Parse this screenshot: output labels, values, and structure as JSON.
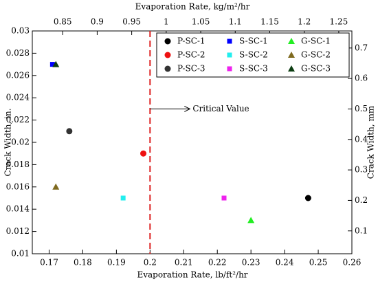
{
  "chart_data": {
    "type": "scatter",
    "xlabel": "Evaporation Rate, lb/ft²/hr",
    "x2label": "Evaporation Rate, kg/m²/hr",
    "ylabel": "Crack Width, in.",
    "y2label": "Crack Width, mm",
    "xlim": [
      0.165,
      0.26
    ],
    "xticks": [
      0.17,
      0.18,
      0.19,
      0.2,
      0.21,
      0.22,
      0.23,
      0.24,
      0.25,
      0.26
    ],
    "x2lim": [
      0.806,
      1.269
    ],
    "x2ticks": [
      0.85,
      0.9,
      0.95,
      1,
      1.05,
      1.1,
      1.15,
      1.2,
      1.25
    ],
    "ylim": [
      0.01,
      0.03
    ],
    "yticks": [
      0.01,
      0.012,
      0.014,
      0.016,
      0.018,
      0.02,
      0.022,
      0.024,
      0.026,
      0.028,
      0.03
    ],
    "y2lim": [
      0.025,
      0.756
    ],
    "y2ticks": [
      0.1,
      0.2,
      0.3,
      0.4,
      0.5,
      0.6,
      0.7
    ],
    "annotation": {
      "text": "Critical Value",
      "x": 0.2,
      "y": 0.023
    },
    "legend": "upper right",
    "series": [
      {
        "name": "P-SC-1",
        "color": "#000000",
        "marker": "circle",
        "x": [
          0.247
        ],
        "values": [
          0.015
        ]
      },
      {
        "name": "S-SC-1",
        "color": "#0000ff",
        "marker": "square",
        "x": [
          0.171
        ],
        "values": [
          0.027
        ]
      },
      {
        "name": "G-SC-1",
        "color": "#22ee22",
        "marker": "triangle",
        "x": [
          0.23
        ],
        "values": [
          0.013
        ]
      },
      {
        "name": "P-SC-2",
        "color": "#ee1111",
        "marker": "circle",
        "x": [
          0.198
        ],
        "values": [
          0.019
        ]
      },
      {
        "name": "S-SC-2",
        "color": "#22eeee",
        "marker": "square",
        "x": [
          0.192
        ],
        "values": [
          0.015
        ]
      },
      {
        "name": "G-SC-2",
        "color": "#7f6a1f",
        "marker": "triangle",
        "x": [
          0.172
        ],
        "values": [
          0.016
        ]
      },
      {
        "name": "P-SC-3",
        "color": "#333333",
        "marker": "circle",
        "x": [
          0.176
        ],
        "values": [
          0.021
        ]
      },
      {
        "name": "S-SC-3",
        "color": "#ee22ee",
        "marker": "square",
        "x": [
          0.222
        ],
        "values": [
          0.015
        ]
      },
      {
        "name": "G-SC-3",
        "color": "#0d3d12",
        "marker": "triangle",
        "x": [
          0.172
        ],
        "values": [
          0.027
        ]
      }
    ]
  }
}
